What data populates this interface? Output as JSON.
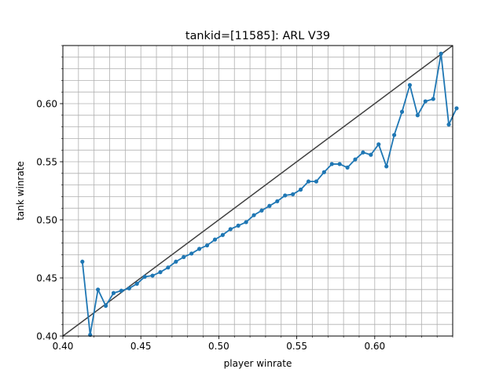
{
  "chart_data": {
    "type": "line",
    "title": "tankid=[11585]: ARL V39",
    "xlabel": "player winrate",
    "ylabel": "tank winrate",
    "xlim": [
      0.4,
      0.65
    ],
    "ylim": [
      0.4,
      0.65
    ],
    "x_ticks": [
      "0.40",
      "0.45",
      "0.50",
      "0.55",
      "0.60"
    ],
    "y_ticks": [
      "0.40",
      "0.45",
      "0.50",
      "0.55",
      "0.60"
    ],
    "x_tick_values": [
      0.4,
      0.45,
      0.5,
      0.55,
      0.6
    ],
    "y_tick_values": [
      0.4,
      0.45,
      0.5,
      0.55,
      0.6
    ],
    "grid": true,
    "reference_line": {
      "x": [
        0.4,
        0.65
      ],
      "y": [
        0.4,
        0.65
      ],
      "color": "#404040"
    },
    "series": [
      {
        "color": "#1f77b4",
        "x": [
          0.4125,
          0.4175,
          0.4225,
          0.4275,
          0.4325,
          0.4375,
          0.4425,
          0.4475,
          0.4525,
          0.4575,
          0.4625,
          0.4675,
          0.4725,
          0.4775,
          0.4825,
          0.4875,
          0.4925,
          0.4975,
          0.5025,
          0.5075,
          0.5125,
          0.5175,
          0.5225,
          0.5275,
          0.5325,
          0.5375,
          0.5425,
          0.5475,
          0.5525,
          0.5575,
          0.5625,
          0.5675,
          0.5725,
          0.5775,
          0.5825,
          0.5875,
          0.5925,
          0.5975,
          0.6025,
          0.6075,
          0.6125,
          0.6175,
          0.6225,
          0.6275,
          0.6325,
          0.6375,
          0.6425,
          0.6475,
          0.6525
        ],
        "y": [
          0.464,
          0.401,
          0.44,
          0.426,
          0.437,
          0.439,
          0.441,
          0.445,
          0.451,
          0.452,
          0.455,
          0.459,
          0.464,
          0.468,
          0.471,
          0.475,
          0.478,
          0.483,
          0.487,
          0.492,
          0.495,
          0.498,
          0.504,
          0.508,
          0.512,
          0.516,
          0.521,
          0.522,
          0.526,
          0.533,
          0.533,
          0.541,
          0.548,
          0.548,
          0.545,
          0.552,
          0.558,
          0.556,
          0.565,
          0.546,
          0.573,
          0.593,
          0.616,
          0.59,
          0.602,
          0.604,
          0.643,
          0.582,
          0.596
        ]
      }
    ]
  }
}
